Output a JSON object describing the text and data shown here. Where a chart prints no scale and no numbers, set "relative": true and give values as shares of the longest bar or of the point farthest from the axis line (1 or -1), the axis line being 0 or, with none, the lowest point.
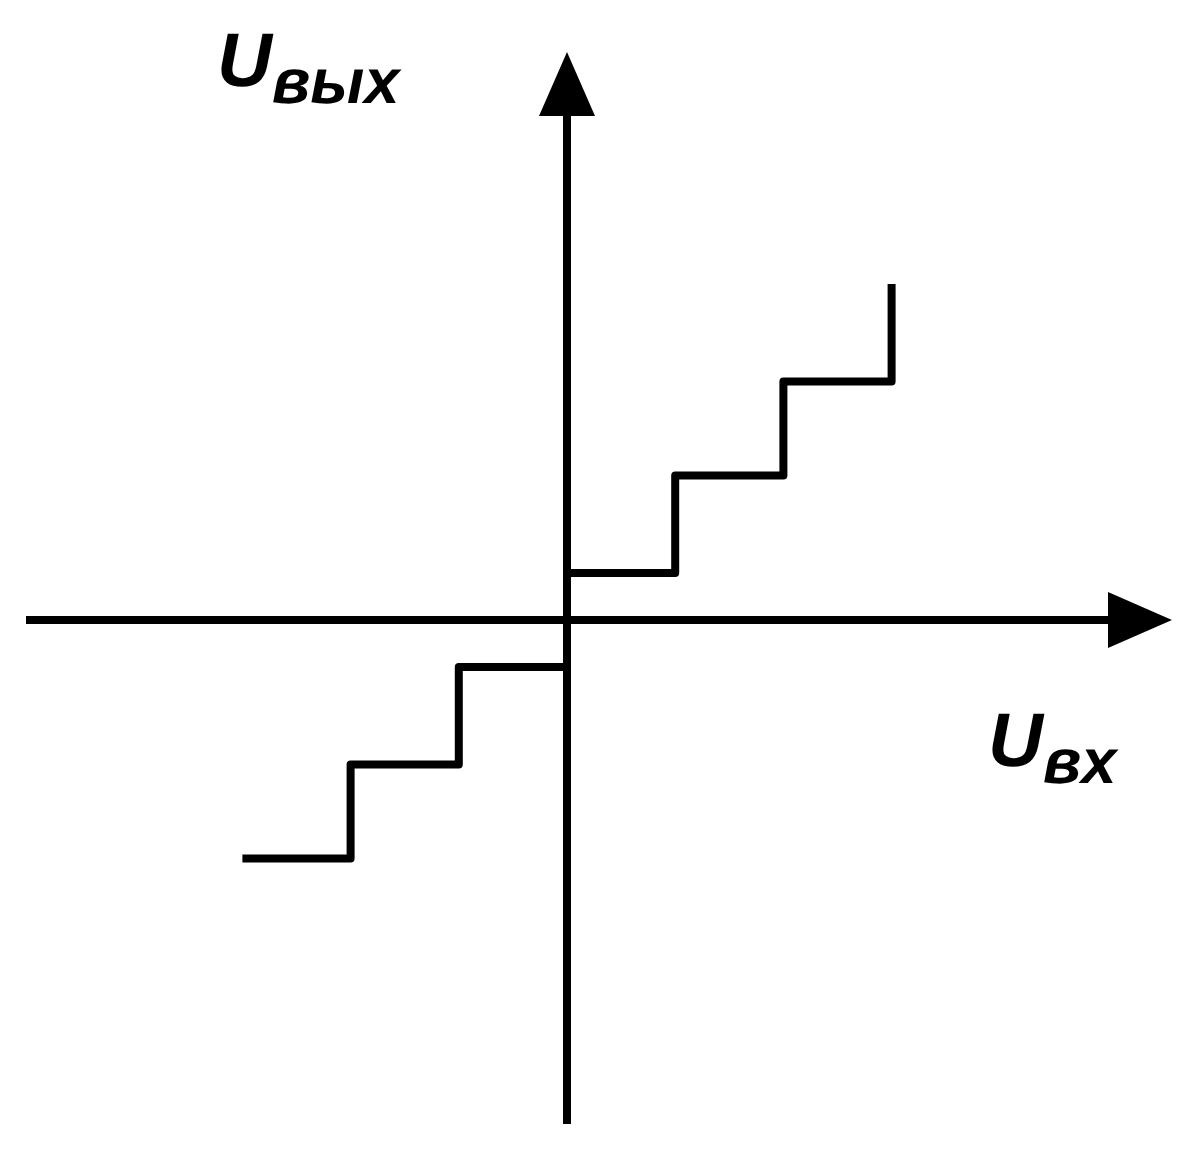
{
  "chart_data": {
    "type": "step",
    "relative": true,
    "xlabel": "U$_{вх}$",
    "ylabel": "U$_{вых}$",
    "categories": [
      null,
      null,
      null,
      null,
      null,
      null,
      null
    ],
    "series": [
      {
        "color": "#000000",
        "values": [
          -0.71,
          -0.43,
          -0.14,
          0.14,
          0.43,
          0.71,
          1
        ]
      }
    ]
  }
}
